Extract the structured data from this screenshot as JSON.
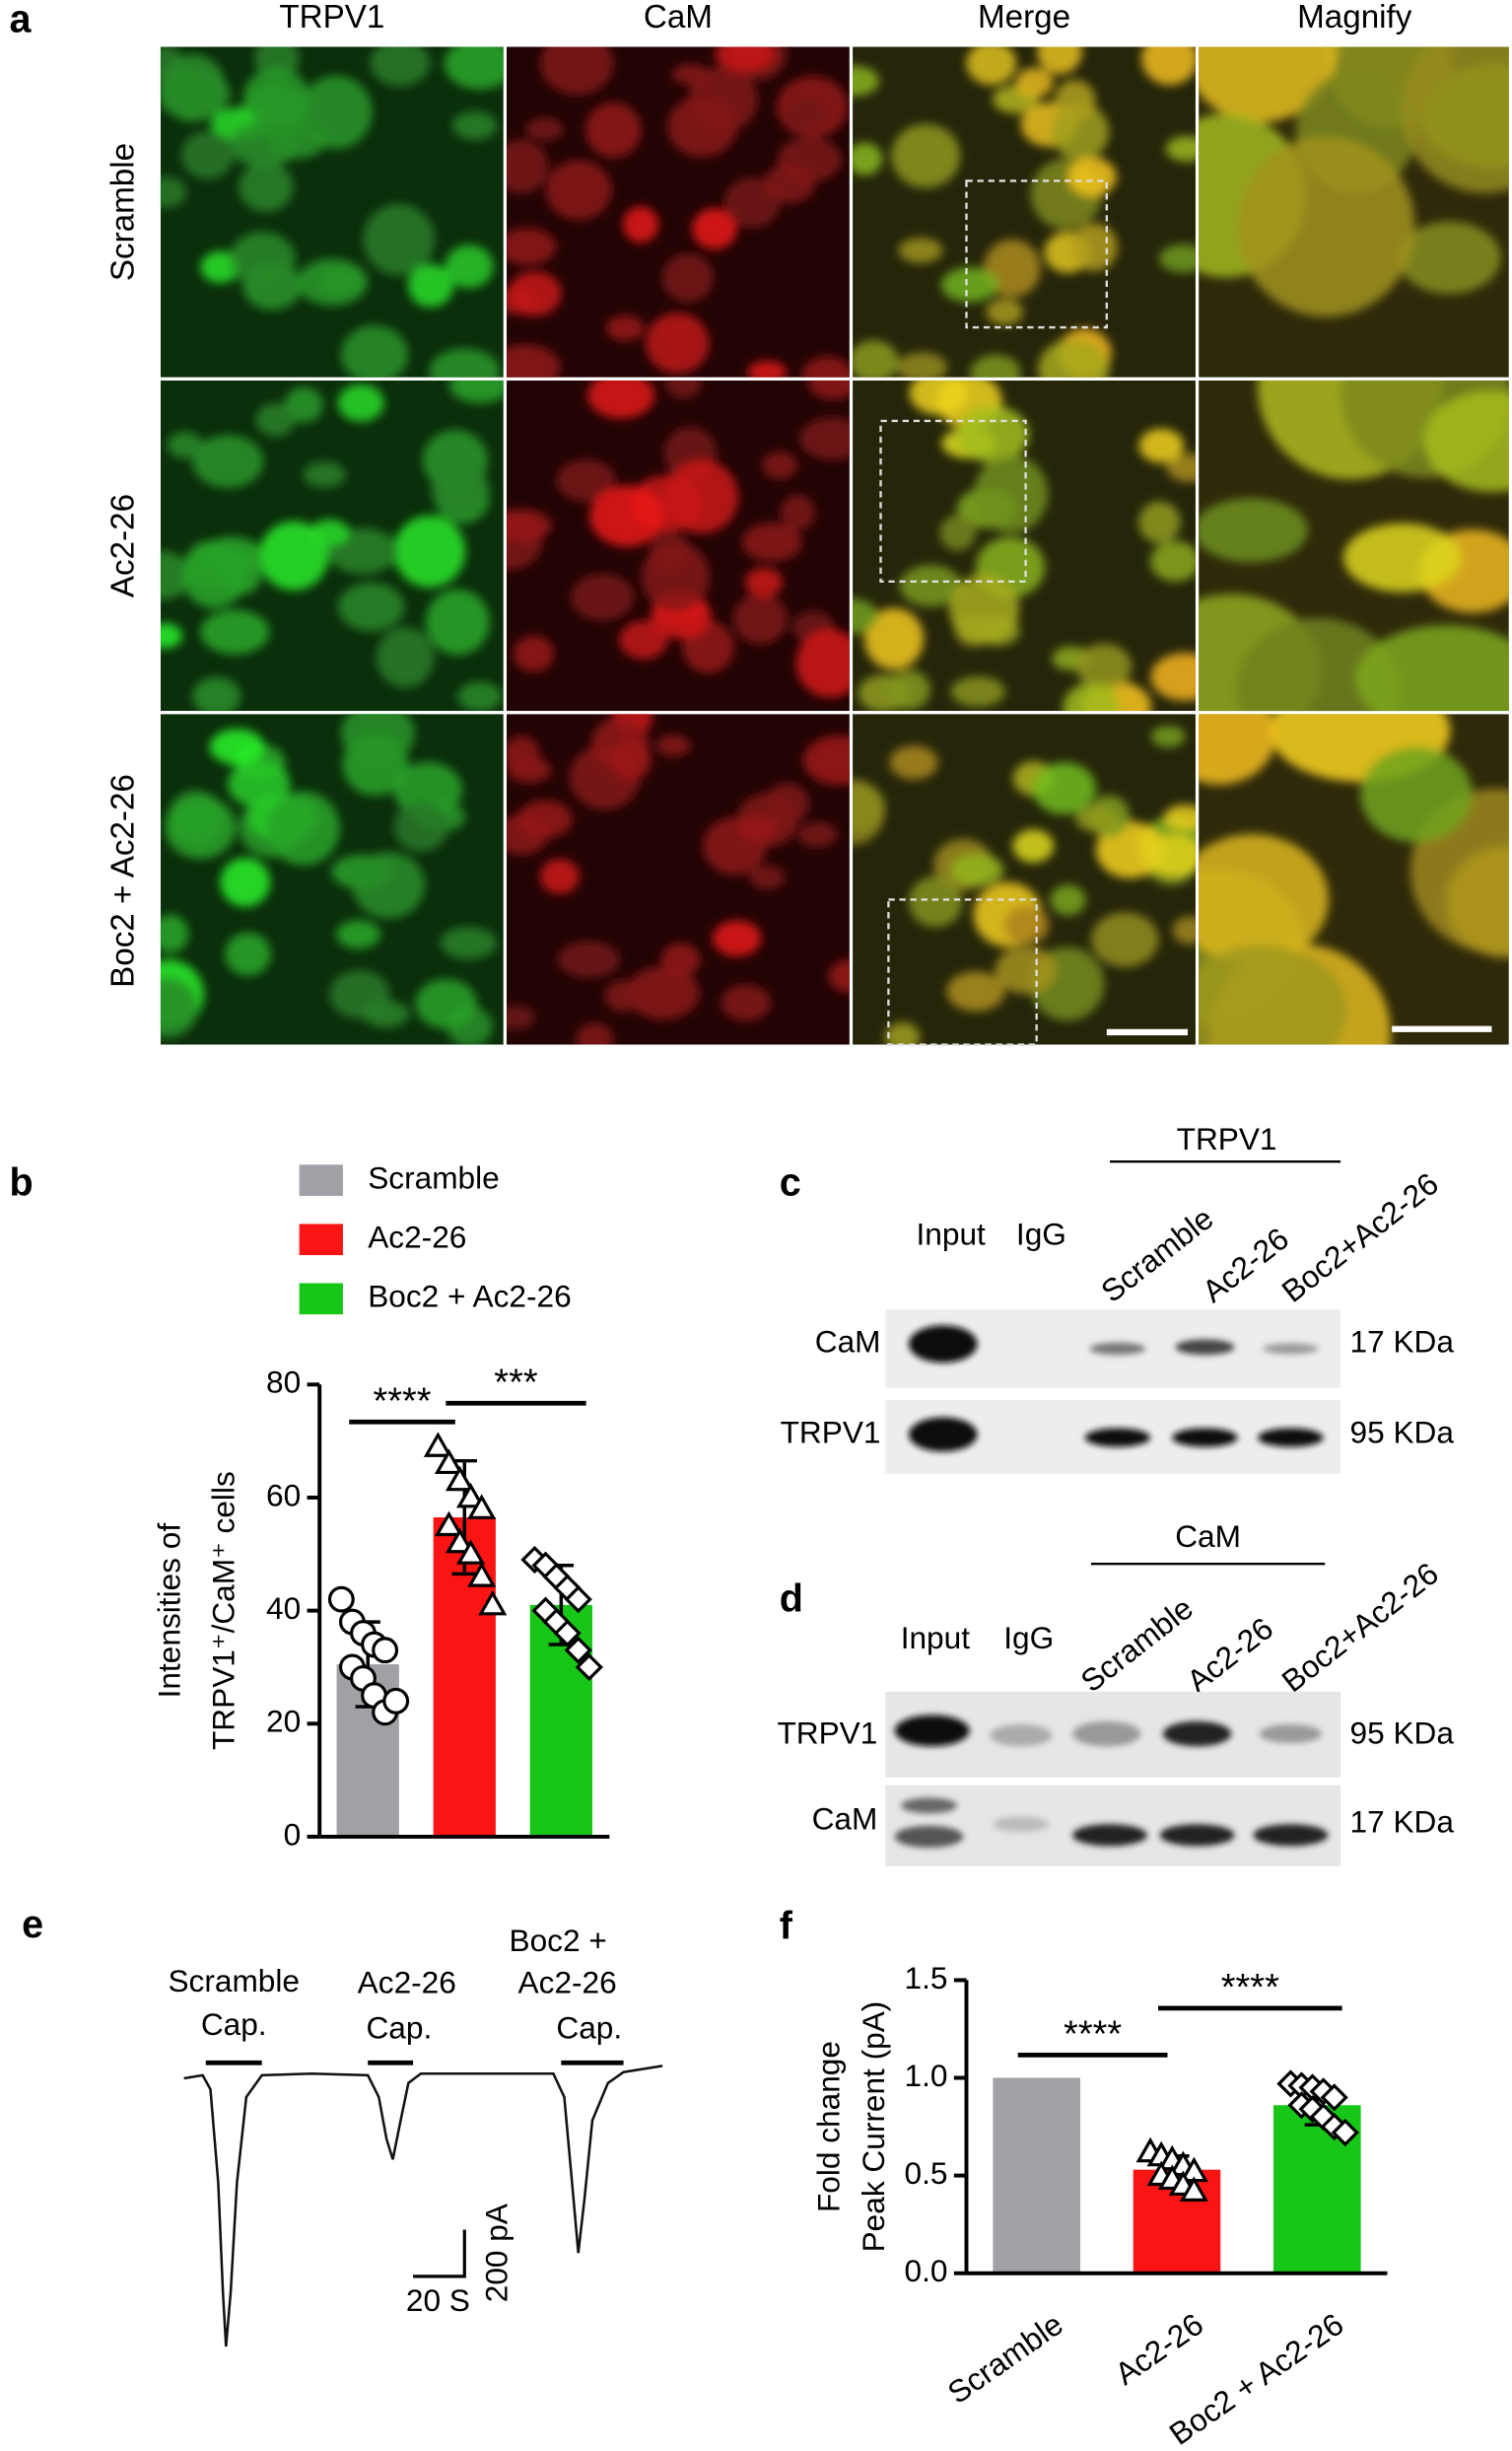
{
  "panel_letters": [
    "a",
    "b",
    "c",
    "d",
    "e",
    "f"
  ],
  "micrographs": {
    "columns": [
      "TRPV1",
      "CaM",
      "Merge",
      "Magnify"
    ],
    "rows": [
      "Scramble",
      "Ac2-26",
      "Boc2 + Ac2-26"
    ]
  },
  "chart_data": [
    {
      "type": "bar",
      "categories": [
        "Scramble",
        "Ac2-26",
        "Boc2 + Ac2-26"
      ],
      "colors": [
        "#a0a0a6",
        "#fb1414",
        "#17c617"
      ],
      "values": [
        30.5,
        56.5,
        41
      ],
      "errors": [
        7.5,
        10,
        7
      ],
      "points": [
        [
          42,
          38,
          36,
          34,
          33,
          30,
          28,
          25,
          22,
          24
        ],
        [
          69,
          66,
          63,
          60,
          58,
          55,
          52,
          50,
          46,
          41
        ],
        [
          49,
          48,
          46,
          44,
          42,
          40,
          38,
          36,
          33,
          30
        ]
      ],
      "markers": [
        "circle",
        "triangle",
        "diamond"
      ],
      "ylabel": [
        "Intensities of",
        "TRPV1⁺/CaM⁺ cells"
      ],
      "ylim": [
        0,
        80
      ],
      "yticks": [
        0,
        20,
        40,
        60,
        80
      ],
      "legend": "top-left",
      "annotations": [
        "****",
        "***"
      ]
    },
    {
      "type": "bar",
      "categories": [
        "Scramble",
        "Ac2-26",
        "Boc2 + Ac2-26"
      ],
      "colors": [
        "#a0a0a6",
        "#fb1414",
        "#17c617"
      ],
      "values": [
        1.0,
        0.53,
        0.86
      ],
      "errors": [
        0,
        0.07,
        0.1
      ],
      "points": [
        [],
        [
          0.62,
          0.6,
          0.58,
          0.55,
          0.52,
          0.5,
          0.48,
          0.45,
          0.42
        ],
        [
          0.97,
          0.96,
          0.95,
          0.93,
          0.9,
          0.86,
          0.84,
          0.8,
          0.75,
          0.72
        ]
      ],
      "markers": [
        null,
        "triangle",
        "diamond"
      ],
      "ylabel": [
        "Fold change",
        "Peak Current (pA)"
      ],
      "ylim": [
        0,
        1.5
      ],
      "yticks": [
        {
          "value": 0,
          "label": "0.0"
        },
        0.5,
        {
          "value": 1,
          "label": "1.0"
        },
        1.5
      ],
      "annotations": [
        "****",
        "****"
      ]
    }
  ],
  "blots": [
    {
      "group_label": "TRPV1",
      "lanes": [
        "Input",
        "IgG",
        "Scramble",
        "Ac2-26",
        "Boc2+Ac2-26"
      ],
      "rows": [
        {
          "name": "CaM",
          "size": "17 KDa"
        },
        {
          "name": "TRPV1",
          "size": "95 KDa"
        }
      ]
    },
    {
      "group_label": "CaM",
      "lanes": [
        "Input",
        "IgG",
        "Scramble",
        "Ac2-26",
        "Boc2+Ac2-26"
      ],
      "rows": [
        {
          "name": "TRPV1",
          "size": "95 KDa"
        },
        {
          "name": "CaM",
          "size": "17 KDa"
        }
      ]
    }
  ],
  "traces": {
    "groups": [
      [
        "Scramble",
        "Cap."
      ],
      [
        "Ac2-26",
        "Cap."
      ],
      [
        "Boc2 +",
        "Ac2-26",
        "Cap."
      ]
    ],
    "scale_x": "20 S",
    "scale_y": "200 pA"
  }
}
